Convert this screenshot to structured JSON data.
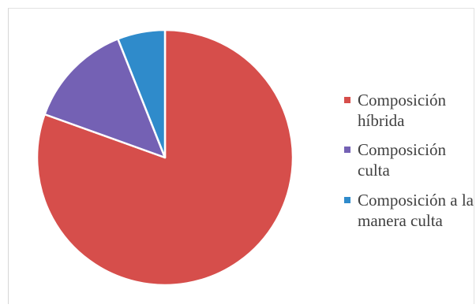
{
  "chart_data": {
    "type": "pie",
    "title": "",
    "slices": [
      {
        "label": "Composición híbrida",
        "value": 80.5,
        "color": "#d64e4b"
      },
      {
        "label": "Composición culta",
        "value": 13.5,
        "color": "#7461b4"
      },
      {
        "label": "Composición a la manera culta",
        "value": 6.0,
        "color": "#2f8bcb"
      }
    ],
    "legend_position": "right",
    "start_angle_deg": 0,
    "direction": "clockwise"
  },
  "legend": {
    "items": [
      {
        "label": "Composición híbrida",
        "color": "#d64e4b"
      },
      {
        "label": "Composición culta",
        "color": "#7461b4"
      },
      {
        "label": "Composición a la manera culta",
        "color": "#2f8bcb"
      }
    ]
  }
}
